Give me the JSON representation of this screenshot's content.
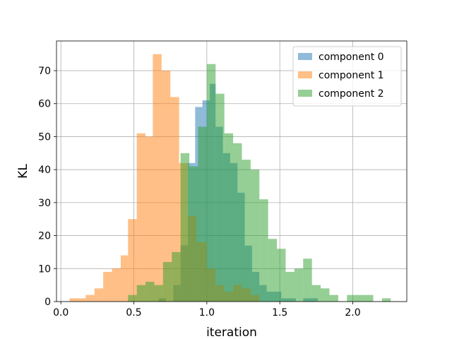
{
  "chart_data": {
    "type": "histogram",
    "title": "",
    "xlabel": "iteration",
    "ylabel": "KL",
    "xlim": [
      -0.03,
      2.37
    ],
    "ylim": [
      0,
      79
    ],
    "xticks": [
      "0.0",
      "0.5",
      "1.0",
      "1.5",
      "2.0"
    ],
    "yticks": [
      "0",
      "10",
      "20",
      "30",
      "40",
      "50",
      "60",
      "70"
    ],
    "grid": true,
    "legend_position": "top-right",
    "bar_alpha": 0.5,
    "series": [
      {
        "name": "component 0",
        "color": "#1f77b4",
        "bins": [
          [
            0.67,
            0.72,
            1
          ],
          [
            0.72,
            0.77,
            0
          ],
          [
            0.77,
            0.82,
            5
          ],
          [
            0.82,
            0.87,
            17
          ],
          [
            0.87,
            0.92,
            42
          ],
          [
            0.92,
            0.97,
            59
          ],
          [
            0.97,
            1.02,
            61
          ],
          [
            1.02,
            1.06,
            66
          ],
          [
            1.06,
            1.11,
            53
          ],
          [
            1.11,
            1.16,
            45
          ],
          [
            1.16,
            1.21,
            42
          ],
          [
            1.21,
            1.26,
            33
          ],
          [
            1.26,
            1.31,
            17
          ],
          [
            1.31,
            1.36,
            9
          ],
          [
            1.36,
            1.41,
            5
          ],
          [
            1.41,
            1.46,
            3
          ],
          [
            1.46,
            1.51,
            3
          ],
          [
            1.51,
            1.56,
            1
          ],
          [
            1.56,
            1.61,
            1
          ],
          [
            1.61,
            1.66,
            0
          ],
          [
            1.66,
            1.71,
            1
          ],
          [
            1.71,
            1.76,
            1
          ]
        ]
      },
      {
        "name": "component 1",
        "color": "#ff7f0e",
        "bins": [
          [
            0.06,
            0.17,
            1
          ],
          [
            0.17,
            0.23,
            2
          ],
          [
            0.23,
            0.29,
            4
          ],
          [
            0.29,
            0.35,
            9
          ],
          [
            0.35,
            0.41,
            10
          ],
          [
            0.41,
            0.46,
            14
          ],
          [
            0.46,
            0.52,
            25
          ],
          [
            0.52,
            0.58,
            51
          ],
          [
            0.58,
            0.63,
            50
          ],
          [
            0.63,
            0.69,
            75
          ],
          [
            0.69,
            0.75,
            70
          ],
          [
            0.75,
            0.81,
            62
          ],
          [
            0.81,
            0.87,
            42
          ],
          [
            0.87,
            0.93,
            26
          ],
          [
            0.93,
            1.0,
            18
          ],
          [
            1.0,
            1.06,
            10
          ],
          [
            1.06,
            1.12,
            5
          ],
          [
            1.12,
            1.18,
            3
          ],
          [
            1.18,
            1.24,
            5
          ],
          [
            1.24,
            1.3,
            4
          ],
          [
            1.3,
            1.36,
            2
          ]
        ]
      },
      {
        "name": "component 2",
        "color": "#2ca02c",
        "bins": [
          [
            0.46,
            0.52,
            2
          ],
          [
            0.52,
            0.58,
            5
          ],
          [
            0.58,
            0.64,
            6
          ],
          [
            0.64,
            0.7,
            5
          ],
          [
            0.7,
            0.76,
            12
          ],
          [
            0.76,
            0.82,
            15
          ],
          [
            0.82,
            0.88,
            45
          ],
          [
            0.88,
            0.94,
            41
          ],
          [
            0.94,
            1.0,
            53
          ],
          [
            1.0,
            1.06,
            72
          ],
          [
            1.06,
            1.12,
            63
          ],
          [
            1.12,
            1.18,
            51
          ],
          [
            1.18,
            1.24,
            48
          ],
          [
            1.24,
            1.3,
            43
          ],
          [
            1.3,
            1.36,
            40
          ],
          [
            1.36,
            1.42,
            31
          ],
          [
            1.42,
            1.48,
            19
          ],
          [
            1.48,
            1.54,
            16
          ],
          [
            1.54,
            1.6,
            9
          ],
          [
            1.6,
            1.66,
            10
          ],
          [
            1.66,
            1.72,
            13
          ],
          [
            1.72,
            1.78,
            5
          ],
          [
            1.78,
            1.84,
            4
          ],
          [
            1.84,
            1.9,
            2
          ],
          [
            1.9,
            1.96,
            0
          ],
          [
            1.96,
            2.02,
            2
          ],
          [
            2.02,
            2.08,
            2
          ],
          [
            2.08,
            2.14,
            2
          ],
          [
            2.14,
            2.2,
            0
          ],
          [
            2.2,
            2.26,
            1
          ]
        ]
      }
    ]
  }
}
